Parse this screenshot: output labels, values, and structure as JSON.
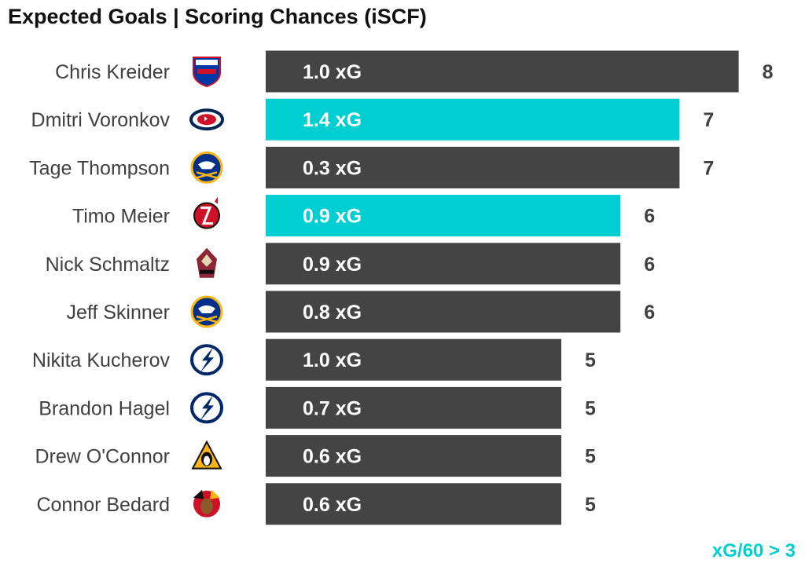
{
  "chart_data": {
    "type": "bar",
    "orientation": "horizontal",
    "title": "Expected Goals | Scoring Chances (iSCF)",
    "note": "xG/60 > 3",
    "categories": [
      "Chris Kreider",
      "Dmitri Voronkov",
      "Tage Thompson",
      "Timo Meier",
      "Nick Schmaltz",
      "Jeff Skinner",
      "Nikita Kucherov",
      "Brandon Hagel",
      "Drew O'Connor",
      "Connor Bedard"
    ],
    "teams": [
      "rangers",
      "blue-jackets",
      "sabres",
      "devils",
      "coyotes",
      "sabres",
      "lightning",
      "lightning",
      "penguins",
      "blackhawks"
    ],
    "values": [
      8,
      7,
      7,
      6,
      6,
      6,
      5,
      5,
      5,
      5
    ],
    "xg_labels": [
      "1.0 xG",
      "1.4 xG",
      "0.3 xG",
      "0.9 xG",
      "0.9 xG",
      "0.8 xG",
      "1.0 xG",
      "0.7 xG",
      "0.6 xG",
      "0.6 xG"
    ],
    "highlighted": [
      false,
      true,
      false,
      true,
      false,
      false,
      false,
      false,
      false,
      false
    ],
    "xlim": [
      0,
      8
    ],
    "grid": false,
    "colors": {
      "default": "#444444",
      "highlight": "#00CED1",
      "text": "#404040",
      "title": "#111111",
      "note": "#00CED1"
    }
  }
}
